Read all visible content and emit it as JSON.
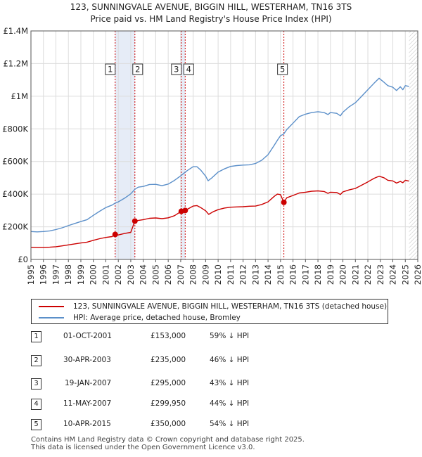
{
  "header": {
    "title_line1": "123, SUNNINGVALE AVENUE, BIGGIN HILL, WESTERHAM, TN16 3TS",
    "title_line2": "Price paid vs. HM Land Registry's House Price Index (HPI)"
  },
  "chart_data": {
    "type": "line",
    "title": "123, SUNNINGVALE AVENUE, BIGGIN HILL, WESTERHAM, TN16 3TS — Price paid vs. HM Land Registry's House Price Index (HPI)",
    "xlabel": "",
    "ylabel": "",
    "xlim": [
      1995,
      2026
    ],
    "ylim": [
      0,
      1400000
    ],
    "x_ticks": [
      "1995",
      "1996",
      "1997",
      "1998",
      "1999",
      "2000",
      "2001",
      "2002",
      "2003",
      "2004",
      "2005",
      "2006",
      "2007",
      "2008",
      "2009",
      "2010",
      "2011",
      "2012",
      "2013",
      "2014",
      "2015",
      "2016",
      "2017",
      "2018",
      "2019",
      "2020",
      "2021",
      "2022",
      "2023",
      "2024",
      "2025",
      "2026"
    ],
    "y_ticks": [
      {
        "value": 0,
        "label": "£0"
      },
      {
        "value": 200000,
        "label": "£200K"
      },
      {
        "value": 400000,
        "label": "£400K"
      },
      {
        "value": 600000,
        "label": "£600K"
      },
      {
        "value": 800000,
        "label": "£800K"
      },
      {
        "value": 1000000,
        "label": "£1M"
      },
      {
        "value": 1200000,
        "label": "£1.2M"
      },
      {
        "value": 1400000,
        "label": "£1.4M"
      }
    ],
    "grid": true,
    "series": [
      {
        "name": "123, SUNNINGVALE AVENUE, BIGGIN HILL, WESTERHAM, TN16 3TS (detached house)",
        "color": "#cc0000",
        "points": [
          [
            1995.0,
            74000
          ],
          [
            1995.5,
            73000
          ],
          [
            1996.0,
            73000
          ],
          [
            1996.5,
            75000
          ],
          [
            1997.0,
            78000
          ],
          [
            1997.5,
            83000
          ],
          [
            1998.0,
            89000
          ],
          [
            1998.5,
            95000
          ],
          [
            1999.0,
            101000
          ],
          [
            1999.5,
            106000
          ],
          [
            2000.0,
            117000
          ],
          [
            2000.5,
            127000
          ],
          [
            2001.0,
            135000
          ],
          [
            2001.5,
            140000
          ],
          [
            2001.75,
            153000
          ],
          [
            2002.0,
            150000
          ],
          [
            2002.5,
            159000
          ],
          [
            2003.0,
            166000
          ],
          [
            2003.33,
            235000
          ],
          [
            2003.5,
            238000
          ],
          [
            2004.0,
            244000
          ],
          [
            2004.5,
            252000
          ],
          [
            2005.0,
            254000
          ],
          [
            2005.5,
            250000
          ],
          [
            2006.0,
            255000
          ],
          [
            2006.5,
            268000
          ],
          [
            2007.05,
            295000
          ],
          [
            2007.36,
            299950
          ],
          [
            2007.6,
            310000
          ],
          [
            2008.0,
            327000
          ],
          [
            2008.3,
            330000
          ],
          [
            2008.6,
            318000
          ],
          [
            2009.0,
            298000
          ],
          [
            2009.25,
            276000
          ],
          [
            2009.6,
            292000
          ],
          [
            2010.0,
            305000
          ],
          [
            2010.5,
            315000
          ],
          [
            2011.0,
            320000
          ],
          [
            2011.5,
            322000
          ],
          [
            2012.0,
            323000
          ],
          [
            2012.5,
            326000
          ],
          [
            2013.0,
            327000
          ],
          [
            2013.5,
            337000
          ],
          [
            2014.0,
            353000
          ],
          [
            2014.5,
            387000
          ],
          [
            2014.75,
            400000
          ],
          [
            2015.0,
            397000
          ],
          [
            2015.27,
            350000
          ],
          [
            2015.5,
            378000
          ],
          [
            2016.0,
            392000
          ],
          [
            2016.5,
            407000
          ],
          [
            2017.0,
            412000
          ],
          [
            2017.5,
            418000
          ],
          [
            2018.0,
            420000
          ],
          [
            2018.5,
            416000
          ],
          [
            2018.8,
            405000
          ],
          [
            2019.0,
            412000
          ],
          [
            2019.5,
            410000
          ],
          [
            2019.8,
            398000
          ],
          [
            2020.0,
            414000
          ],
          [
            2020.5,
            426000
          ],
          [
            2021.0,
            435000
          ],
          [
            2021.5,
            455000
          ],
          [
            2022.0,
            475000
          ],
          [
            2022.5,
            497000
          ],
          [
            2022.9,
            510000
          ],
          [
            2023.3,
            500000
          ],
          [
            2023.6,
            485000
          ],
          [
            2024.0,
            481000
          ],
          [
            2024.3,
            468000
          ],
          [
            2024.6,
            478000
          ],
          [
            2024.8,
            470000
          ],
          [
            2025.0,
            485000
          ],
          [
            2025.3,
            480000
          ]
        ]
      },
      {
        "name": "HPI: Average price, detached house, Bromley",
        "color": "#5b8fc9",
        "points": [
          [
            1995.0,
            171000
          ],
          [
            1995.5,
            169000
          ],
          [
            1996.0,
            171000
          ],
          [
            1996.5,
            175000
          ],
          [
            1997.0,
            183000
          ],
          [
            1997.5,
            194000
          ],
          [
            1998.0,
            207000
          ],
          [
            1998.5,
            220000
          ],
          [
            1999.0,
            232000
          ],
          [
            1999.5,
            244000
          ],
          [
            2000.0,
            270000
          ],
          [
            2000.5,
            295000
          ],
          [
            2001.0,
            318000
          ],
          [
            2001.5,
            333000
          ],
          [
            2001.75,
            345000
          ],
          [
            2002.0,
            353000
          ],
          [
            2002.5,
            375000
          ],
          [
            2003.0,
            402000
          ],
          [
            2003.33,
            430000
          ],
          [
            2003.6,
            443000
          ],
          [
            2004.0,
            447000
          ],
          [
            2004.5,
            459000
          ],
          [
            2005.0,
            460000
          ],
          [
            2005.5,
            452000
          ],
          [
            2006.0,
            462000
          ],
          [
            2006.5,
            484000
          ],
          [
            2007.0,
            512000
          ],
          [
            2007.5,
            543000
          ],
          [
            2008.0,
            568000
          ],
          [
            2008.3,
            568000
          ],
          [
            2008.6,
            548000
          ],
          [
            2009.0,
            510000
          ],
          [
            2009.2,
            482000
          ],
          [
            2009.5,
            500000
          ],
          [
            2010.0,
            535000
          ],
          [
            2010.5,
            555000
          ],
          [
            2011.0,
            570000
          ],
          [
            2011.5,
            575000
          ],
          [
            2012.0,
            578000
          ],
          [
            2012.5,
            580000
          ],
          [
            2013.0,
            588000
          ],
          [
            2013.5,
            608000
          ],
          [
            2014.0,
            642000
          ],
          [
            2014.5,
            700000
          ],
          [
            2014.75,
            730000
          ],
          [
            2015.0,
            758000
          ],
          [
            2015.25,
            768000
          ],
          [
            2015.5,
            795000
          ],
          [
            2016.0,
            835000
          ],
          [
            2016.5,
            875000
          ],
          [
            2017.0,
            890000
          ],
          [
            2017.5,
            900000
          ],
          [
            2018.0,
            905000
          ],
          [
            2018.5,
            900000
          ],
          [
            2018.8,
            888000
          ],
          [
            2019.0,
            900000
          ],
          [
            2019.5,
            895000
          ],
          [
            2019.8,
            880000
          ],
          [
            2020.0,
            902000
          ],
          [
            2020.5,
            935000
          ],
          [
            2021.0,
            960000
          ],
          [
            2021.5,
            1000000
          ],
          [
            2022.0,
            1040000
          ],
          [
            2022.5,
            1080000
          ],
          [
            2022.9,
            1110000
          ],
          [
            2023.3,
            1085000
          ],
          [
            2023.6,
            1065000
          ],
          [
            2024.0,
            1055000
          ],
          [
            2024.3,
            1035000
          ],
          [
            2024.6,
            1058000
          ],
          [
            2024.8,
            1040000
          ],
          [
            2025.0,
            1065000
          ],
          [
            2025.3,
            1060000
          ]
        ]
      }
    ],
    "transactions": [
      {
        "num": "1",
        "date": "01-OCT-2001",
        "x": 2001.75,
        "price_value": 153000,
        "price": "£153,000",
        "hpi": "59% ↓ HPI"
      },
      {
        "num": "2",
        "date": "30-APR-2003",
        "x": 2003.33,
        "price_value": 235000,
        "price": "£235,000",
        "hpi": "46% ↓ HPI"
      },
      {
        "num": "3",
        "date": "19-JAN-2007",
        "x": 2007.05,
        "price_value": 295000,
        "price": "£295,000",
        "hpi": "43% ↓ HPI"
      },
      {
        "num": "4",
        "date": "11-MAY-2007",
        "x": 2007.36,
        "price_value": 299950,
        "price": "£299,950",
        "hpi": "44% ↓ HPI"
      },
      {
        "num": "5",
        "date": "10-APR-2015",
        "x": 2015.27,
        "price_value": 350000,
        "price": "£350,000",
        "hpi": "54% ↓ HPI"
      }
    ],
    "shaded_ranges": [
      [
        2001.75,
        2003.33
      ],
      [
        2007.05,
        2007.36
      ],
      [
        2015.27,
        2015.27
      ]
    ],
    "forecast_start": 2025.3
  },
  "legend": {
    "property_label": "123, SUNNINGVALE AVENUE, BIGGIN HILL, WESTERHAM, TN16 3TS (detached house)",
    "hpi_label": "HPI: Average price, detached house, Bromley",
    "property_color": "#cc0000",
    "hpi_color": "#5b8fc9"
  },
  "footer": {
    "line1": "Contains HM Land Registry data © Crown copyright and database right 2025.",
    "line2": "This data is licensed under the Open Government Licence v3.0."
  }
}
